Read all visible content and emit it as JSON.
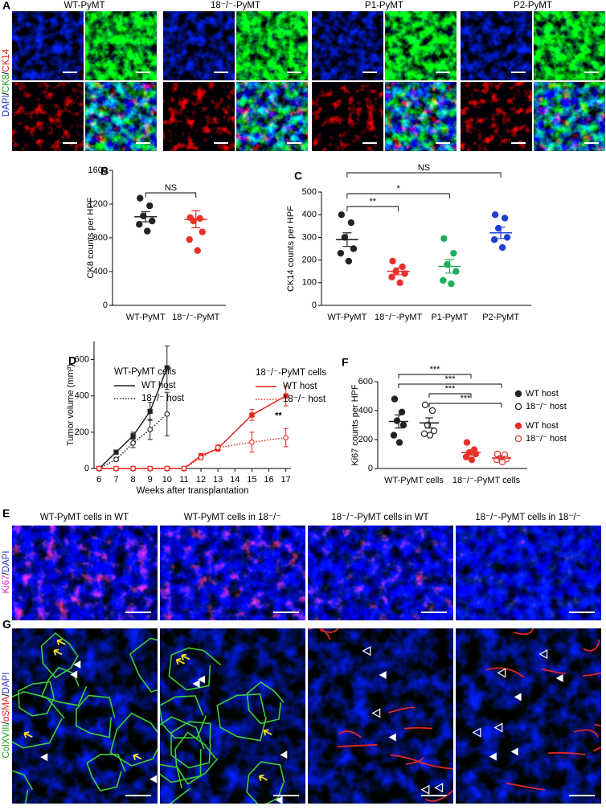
{
  "image_panels": [
    {
      "panel": "A",
      "titles": [
        "WT-PyMT",
        "18⁻/⁻-PyMT",
        "P1-PyMT",
        "P2-PyMT"
      ],
      "title_colors": [
        "#000000",
        "#000000",
        "#000000",
        "#000000"
      ],
      "stain": [
        {
          "text": "DAPI",
          "color": "#2233cc"
        },
        {
          "text": "/",
          "color": "#000000"
        },
        {
          "text": "CK8",
          "color": "#18a018"
        },
        {
          "text": "/",
          "color": "#000000"
        },
        {
          "text": "CK14",
          "color": "#e02020"
        }
      ]
    },
    {
      "panel": "E",
      "titles": [
        "WT-PyMT cells in WT",
        "WT-PyMT cells in 18⁻/⁻",
        "18⁻/⁻-PyMT cells in WT",
        "18⁻/⁻-PyMT cells in 18⁻/⁻"
      ],
      "title_colors": [
        "#000000",
        "#000000",
        "#e8231c",
        "#e8231c"
      ],
      "stain": [
        {
          "text": "Ki67",
          "color": "#e020c0"
        },
        {
          "text": "/",
          "color": "#000000"
        },
        {
          "text": "DAPI",
          "color": "#2233cc"
        }
      ]
    },
    {
      "panel": "G",
      "stain": [
        {
          "text": "ColXVIII",
          "color": "#18a018"
        },
        {
          "text": "/",
          "color": "#000000"
        },
        {
          "text": "αSMA",
          "color": "#e02020"
        },
        {
          "text": "/",
          "color": "#000000"
        },
        {
          "text": "DAPI",
          "color": "#2233cc"
        }
      ]
    }
  ],
  "chart_data": [
    {
      "panel": "B",
      "type": "dot",
      "ylabel": "CK8 counts per HPF",
      "ylim": [
        0,
        1600
      ],
      "yticks": [
        0,
        400,
        800,
        1200,
        1600
      ],
      "categories": [
        {
          "label": "WT-PyMT",
          "color": "#000000",
          "groups": [
            {
              "color": "#222222",
              "filled": true,
              "points": [
                1270,
                1180,
                1060,
                1000,
                960,
                880
              ],
              "mean": 1050,
              "sem": 60
            }
          ]
        },
        {
          "label": "18⁻/⁻-PyMT",
          "color": "#000000",
          "groups": [
            {
              "color": "#e8312a",
              "filled": true,
              "points": [
                1040,
                1030,
                1000,
                870,
                780,
                650
              ],
              "mean": 1020,
              "sem": 100
            }
          ]
        }
      ],
      "brackets": [
        {
          "from": 0,
          "to": 1,
          "label": "NS"
        }
      ]
    },
    {
      "panel": "C",
      "type": "dot",
      "ylabel": "CK14 counts per HPF",
      "ylim": [
        0,
        500
      ],
      "yticks": [
        0,
        100,
        200,
        300,
        400,
        500
      ],
      "categories": [
        {
          "label": "WT-PyMT",
          "color": "#000000",
          "groups": [
            {
              "color": "#222222",
              "filled": true,
              "points": [
                400,
                365,
                300,
                250,
                230,
                195
              ],
              "mean": 290,
              "sem": 30
            }
          ]
        },
        {
          "label": "18⁻/⁻-PyMT",
          "color": "#000000",
          "groups": [
            {
              "color": "#e8312a",
              "filled": true,
              "points": [
                195,
                170,
                150,
                140,
                125,
                100
              ],
              "mean": 150,
              "sem": 15
            }
          ]
        },
        {
          "label": "P1-PyMT",
          "color": "#000000",
          "groups": [
            {
              "color": "#1fae5a",
              "filled": true,
              "points": [
                295,
                230,
                180,
                150,
                110,
                95
              ],
              "mean": 172,
              "sem": 30
            }
          ]
        },
        {
          "label": "P2-PyMT",
          "color": "#000000",
          "groups": [
            {
              "color": "#1f3fd0",
              "filled": true,
              "points": [
                400,
                385,
                340,
                300,
                290,
                255
              ],
              "mean": 320,
              "sem": 25
            }
          ]
        }
      ],
      "brackets": [
        {
          "from": 0,
          "to": 1,
          "label": "**"
        },
        {
          "from": 0,
          "to": 2,
          "label": "*"
        },
        {
          "from": 0,
          "to": 3,
          "label": "NS"
        }
      ]
    },
    {
      "panel": "D",
      "type": "line",
      "xlabel": "Weeks after transplantation",
      "ylabel": "Tumor volume (mm³)",
      "xlim": [
        5.7,
        17.3
      ],
      "xticks": [
        6,
        7,
        8,
        9,
        10,
        11,
        12,
        13,
        14,
        15,
        16,
        17
      ],
      "ylim": [
        0,
        700
      ],
      "yticks": [
        0,
        200,
        400,
        600
      ],
      "groups": [
        {
          "name": "WT-PyMT cells",
          "color": "#222222",
          "series": [
            {
              "name": "WT host",
              "dash": "solid",
              "marker": "square",
              "filled": true,
              "x": [
                6,
                7,
                8,
                9,
                10
              ],
              "values": [
                0,
                90,
                180,
                315,
                555
              ],
              "errors": [
                0,
                10,
                20,
                50,
                120
              ]
            },
            {
              "name": "18⁻/⁻ host",
              "dash": "dotted",
              "marker": "circle",
              "filled": false,
              "x": [
                6,
                7,
                8,
                9,
                10
              ],
              "values": [
                0,
                50,
                140,
                215,
                300
              ],
              "errors": [
                0,
                10,
                25,
                55,
                120
              ]
            }
          ]
        },
        {
          "name": "18⁻/⁻-PyMT cells",
          "color": "#e8231c",
          "series": [
            {
              "name": "WT host",
              "dash": "solid",
              "marker": "square",
              "filled": true,
              "x": [
                6,
                7,
                8,
                9,
                10,
                11,
                12,
                13,
                15,
                17
              ],
              "values": [
                0,
                0,
                0,
                0,
                0,
                0,
                70,
                110,
                295,
                400
              ],
              "errors": [
                0,
                0,
                0,
                0,
                0,
                0,
                10,
                15,
                30,
                55
              ]
            },
            {
              "name": "18⁻/⁻ host",
              "dash": "dotted",
              "marker": "circle",
              "filled": false,
              "x": [
                6,
                7,
                8,
                9,
                10,
                11,
                12,
                13,
                15,
                17
              ],
              "values": [
                0,
                0,
                0,
                0,
                0,
                0,
                60,
                115,
                145,
                170
              ],
              "errors": [
                0,
                0,
                0,
                0,
                0,
                0,
                10,
                15,
                55,
                50
              ]
            }
          ]
        }
      ],
      "annotations": [
        {
          "text": "**",
          "x": 17,
          "y": 290
        }
      ]
    },
    {
      "panel": "F",
      "type": "dot",
      "ylabel": "Ki67 counts per HPF",
      "ylim": [
        0,
        600
      ],
      "yticks": [
        0,
        200,
        400,
        600
      ],
      "categories": [
        {
          "label": "WT-PyMT cells",
          "color": "#000000",
          "groups": [
            {
              "name": "WT host",
              "color": "#222222",
              "filled": true,
              "points": [
                480,
                390,
                330,
                300,
                230,
                180
              ],
              "mean": 325,
              "sem": 45
            },
            {
              "name": "18⁻/⁻ host",
              "color": "#222222",
              "filled": false,
              "points": [
                440,
                400,
                300,
                260,
                240,
                230
              ],
              "mean": 315,
              "sem": 35
            }
          ]
        },
        {
          "label": "18⁻/⁻-PyMT cells",
          "color": "#e8231c",
          "groups": [
            {
              "name": "WT host",
              "color": "#e8312a",
              "filled": true,
              "points": [
                180,
                130,
                110,
                100,
                80,
                60
              ],
              "mean": 110,
              "sem": 18
            },
            {
              "name": "18⁻/⁻ host",
              "color": "#e8312a",
              "filled": false,
              "points": [
                100,
                95,
                70,
                65,
                60,
                45
              ],
              "mean": 72,
              "sem": 10
            }
          ]
        }
      ],
      "brackets": [
        {
          "from": 0,
          "to": 2,
          "label": "***"
        },
        {
          "from": 0,
          "to": 3,
          "label": "***"
        },
        {
          "from": 1,
          "to": 2,
          "label": "***"
        },
        {
          "from": 1,
          "to": 3,
          "label": "***"
        }
      ]
    }
  ]
}
